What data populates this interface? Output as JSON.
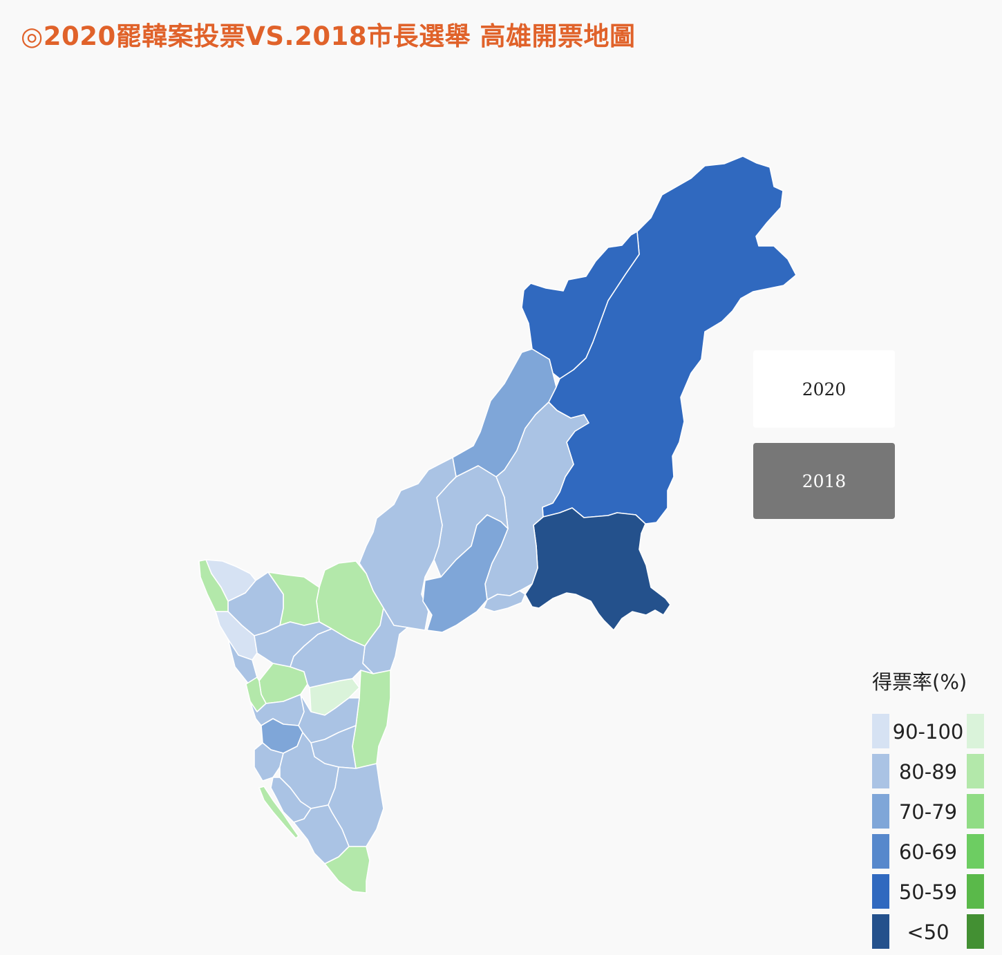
{
  "header": {
    "title": "◎2020罷韓案投票VS.2018市長選舉 高雄開票地圖"
  },
  "year_toggle": {
    "options": [
      "2020",
      "2018"
    ],
    "selected": "2018"
  },
  "legend": {
    "title": "得票率(%)",
    "bins": [
      {
        "label": "90-100",
        "blue": "#d6e2f3",
        "green": "#daf3da"
      },
      {
        "label": "80-89",
        "blue": "#aac3e4",
        "green": "#b3e8aa"
      },
      {
        "label": "70-79",
        "blue": "#7fa6d8",
        "green": "#90dc85"
      },
      {
        "label": "60-69",
        "blue": "#5688cc",
        "green": "#6dcd62"
      },
      {
        "label": "50-59",
        "blue": "#3069bf",
        "green": "#5ab94a"
      },
      {
        "label": "<50",
        "blue": "#24518c",
        "green": "#439033"
      }
    ]
  },
  "map": {
    "districts": [
      {
        "id": "taoyuan",
        "bin": "50-59",
        "color": "blue"
      },
      {
        "id": "namaxia",
        "bin": "50-59",
        "color": "blue"
      },
      {
        "id": "maolin",
        "bin": "<50",
        "color": "blue"
      },
      {
        "id": "jiaxian",
        "bin": "70-79",
        "color": "blue"
      },
      {
        "id": "liugui",
        "bin": "80-89",
        "color": "blue"
      },
      {
        "id": "shanlin",
        "bin": "80-89",
        "color": "blue"
      },
      {
        "id": "neimen",
        "bin": "80-89",
        "color": "blue"
      },
      {
        "id": "qishan",
        "bin": "70-79",
        "color": "blue"
      },
      {
        "id": "meinong",
        "bin": "80-89",
        "color": "blue"
      },
      {
        "id": "tianliao",
        "bin": "80-89",
        "color": "green"
      },
      {
        "id": "yanchao",
        "bin": "80-89",
        "color": "blue"
      },
      {
        "id": "alian",
        "bin": "80-89",
        "color": "green"
      },
      {
        "id": "lujhu",
        "bin": "80-89",
        "color": "blue"
      },
      {
        "id": "hunei",
        "bin": "90-100",
        "color": "blue"
      },
      {
        "id": "qieding",
        "bin": "80-89",
        "color": "green"
      },
      {
        "id": "yongan",
        "bin": "90-100",
        "color": "blue"
      },
      {
        "id": "gangshan",
        "bin": "80-89",
        "color": "blue"
      },
      {
        "id": "mituo",
        "bin": "80-89",
        "color": "blue"
      },
      {
        "id": "ciaotou",
        "bin": "80-89",
        "color": "green"
      },
      {
        "id": "dashe",
        "bin": "90-100",
        "color": "green"
      },
      {
        "id": "dashu",
        "bin": "80-89",
        "color": "green"
      },
      {
        "id": "ziguan",
        "bin": "80-89",
        "color": "green"
      },
      {
        "id": "nanzih",
        "bin": "80-89",
        "color": "blue"
      },
      {
        "id": "renwu",
        "bin": "80-89",
        "color": "blue"
      },
      {
        "id": "zuoying",
        "bin": "70-79",
        "color": "blue"
      },
      {
        "id": "niaosong",
        "bin": "80-89",
        "color": "blue"
      },
      {
        "id": "gushan",
        "bin": "80-89",
        "color": "blue"
      },
      {
        "id": "sanmin",
        "bin": "80-89",
        "color": "blue"
      },
      {
        "id": "fengshan",
        "bin": "80-89",
        "color": "blue"
      },
      {
        "id": "daliao",
        "bin": "80-89",
        "color": "blue"
      },
      {
        "id": "cianjhen",
        "bin": "80-89",
        "color": "blue"
      },
      {
        "id": "xiaogang",
        "bin": "80-89",
        "color": "blue"
      },
      {
        "id": "linyuan",
        "bin": "80-89",
        "color": "green"
      },
      {
        "id": "cijin",
        "bin": "80-89",
        "color": "green"
      }
    ]
  }
}
